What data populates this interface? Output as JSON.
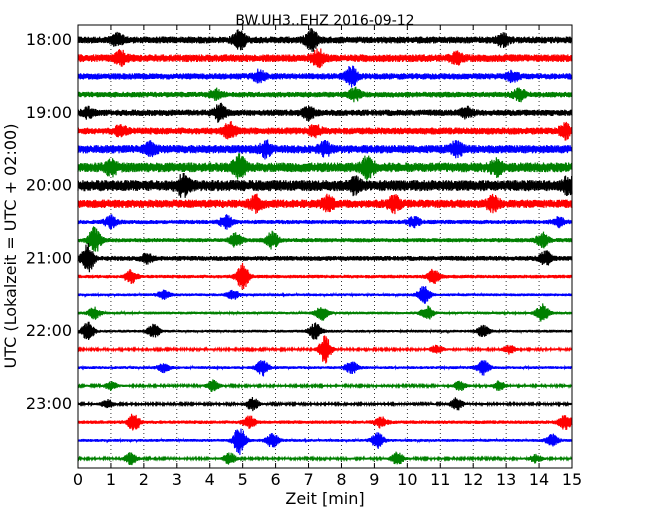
{
  "chart_data": {
    "type": "line",
    "title": "BW.UH3..EHZ 2016-09-12",
    "xlabel": "Zeit  [min]",
    "ylabel": "UTC (Lokalzeit = UTC + 02:00)",
    "xlim": [
      0,
      15
    ],
    "x_ticks": [
      "0",
      "1",
      "2",
      "3",
      "4",
      "5",
      "6",
      "7",
      "8",
      "9",
      "10",
      "11",
      "12",
      "13",
      "14",
      "15"
    ],
    "y_ticks": [
      {
        "label": "18:00",
        "row": 0
      },
      {
        "label": "19:00",
        "row": 4
      },
      {
        "label": "20:00",
        "row": 8
      },
      {
        "label": "21:00",
        "row": 12
      },
      {
        "label": "22:00",
        "row": 16
      },
      {
        "label": "23:00",
        "row": 20
      }
    ],
    "grid": "vertical dotted lines at each minute",
    "trace_colors": [
      "#000000",
      "#ff0000",
      "#0000ff",
      "#008000"
    ],
    "trace_start_times": [
      "18:00",
      "18:15",
      "18:30",
      "18:45",
      "19:00",
      "19:15",
      "19:30",
      "19:45",
      "20:00",
      "20:15",
      "20:30",
      "20:45",
      "21:00",
      "21:15",
      "21:30",
      "21:45",
      "22:00",
      "22:15",
      "22:30",
      "22:45",
      "23:00",
      "23:15",
      "23:30",
      "23:45"
    ],
    "trace_noise_level": [
      0.5,
      0.55,
      0.45,
      0.4,
      0.45,
      0.5,
      0.6,
      0.7,
      0.8,
      0.6,
      0.3,
      0.3,
      0.35,
      0.25,
      0.2,
      0.2,
      0.2,
      0.15,
      0.2,
      0.15,
      0.15,
      0.25,
      0.2,
      0.15
    ],
    "events": [
      [
        [
          1.2,
          0.7
        ],
        [
          4.9,
          1.2
        ],
        [
          7.1,
          1.3
        ],
        [
          12.9,
          0.7
        ]
      ],
      [
        [
          1.3,
          0.8
        ],
        [
          7.3,
          1.0
        ],
        [
          11.5,
          0.6
        ]
      ],
      [
        [
          5.5,
          0.7
        ],
        [
          8.3,
          1.3
        ],
        [
          13.2,
          0.6
        ]
      ],
      [
        [
          4.2,
          0.6
        ],
        [
          8.4,
          0.8
        ],
        [
          13.4,
          0.8
        ]
      ],
      [
        [
          0.3,
          0.6
        ],
        [
          4.3,
          1.1
        ],
        [
          7.0,
          0.8
        ],
        [
          11.8,
          0.6
        ]
      ],
      [
        [
          1.3,
          0.7
        ],
        [
          4.6,
          1.1
        ],
        [
          7.2,
          0.7
        ],
        [
          14.8,
          0.9
        ]
      ],
      [
        [
          2.2,
          0.7
        ],
        [
          5.7,
          0.9
        ],
        [
          7.5,
          0.8
        ],
        [
          11.5,
          0.9
        ]
      ],
      [
        [
          1.0,
          0.9
        ],
        [
          4.9,
          1.4
        ],
        [
          8.8,
          1.3
        ],
        [
          12.7,
          0.9
        ]
      ],
      [
        [
          3.2,
          1.2
        ],
        [
          8.4,
          0.8
        ],
        [
          14.9,
          0.9
        ]
      ],
      [
        [
          5.4,
          0.9
        ],
        [
          7.6,
          0.9
        ],
        [
          9.6,
          0.9
        ],
        [
          12.6,
          0.9
        ]
      ],
      [
        [
          1.0,
          0.8
        ],
        [
          4.5,
          0.9
        ],
        [
          10.2,
          0.7
        ],
        [
          14.6,
          0.6
        ]
      ],
      [
        [
          0.5,
          1.8
        ],
        [
          4.8,
          0.9
        ],
        [
          5.9,
          1.1
        ],
        [
          14.1,
          1.0
        ]
      ],
      [
        [
          0.3,
          1.9
        ],
        [
          2.1,
          0.6
        ],
        [
          14.2,
          0.9
        ]
      ],
      [
        [
          1.6,
          0.9
        ],
        [
          5.0,
          1.9
        ],
        [
          10.8,
          1.0
        ]
      ],
      [
        [
          2.6,
          0.6
        ],
        [
          4.7,
          0.6
        ],
        [
          10.5,
          1.2
        ]
      ],
      [
        [
          0.5,
          0.8
        ],
        [
          7.4,
          1.0
        ],
        [
          10.6,
          0.9
        ],
        [
          14.1,
          1.2
        ]
      ],
      [
        [
          0.3,
          1.2
        ],
        [
          2.3,
          0.9
        ],
        [
          7.2,
          1.2
        ],
        [
          12.3,
          0.8
        ]
      ],
      [
        [
          7.5,
          1.9
        ],
        [
          10.9,
          0.6
        ],
        [
          13.1,
          0.6
        ]
      ],
      [
        [
          2.6,
          0.6
        ],
        [
          5.6,
          1.1
        ],
        [
          8.3,
          0.9
        ],
        [
          12.3,
          1.0
        ]
      ],
      [
        [
          1.0,
          0.6
        ],
        [
          4.1,
          0.8
        ],
        [
          11.6,
          0.7
        ],
        [
          12.8,
          0.7
        ]
      ],
      [
        [
          0.9,
          0.6
        ],
        [
          5.3,
          0.9
        ],
        [
          11.5,
          0.9
        ]
      ],
      [
        [
          1.7,
          1.2
        ],
        [
          5.2,
          0.8
        ],
        [
          9.2,
          0.7
        ],
        [
          14.8,
          1.0
        ]
      ],
      [
        [
          4.9,
          1.9
        ],
        [
          5.9,
          1.0
        ],
        [
          9.1,
          1.1
        ],
        [
          14.4,
          0.8
        ]
      ],
      [
        [
          1.6,
          0.9
        ],
        [
          4.6,
          0.8
        ],
        [
          9.7,
          0.9
        ],
        [
          13.9,
          0.6
        ]
      ]
    ]
  }
}
